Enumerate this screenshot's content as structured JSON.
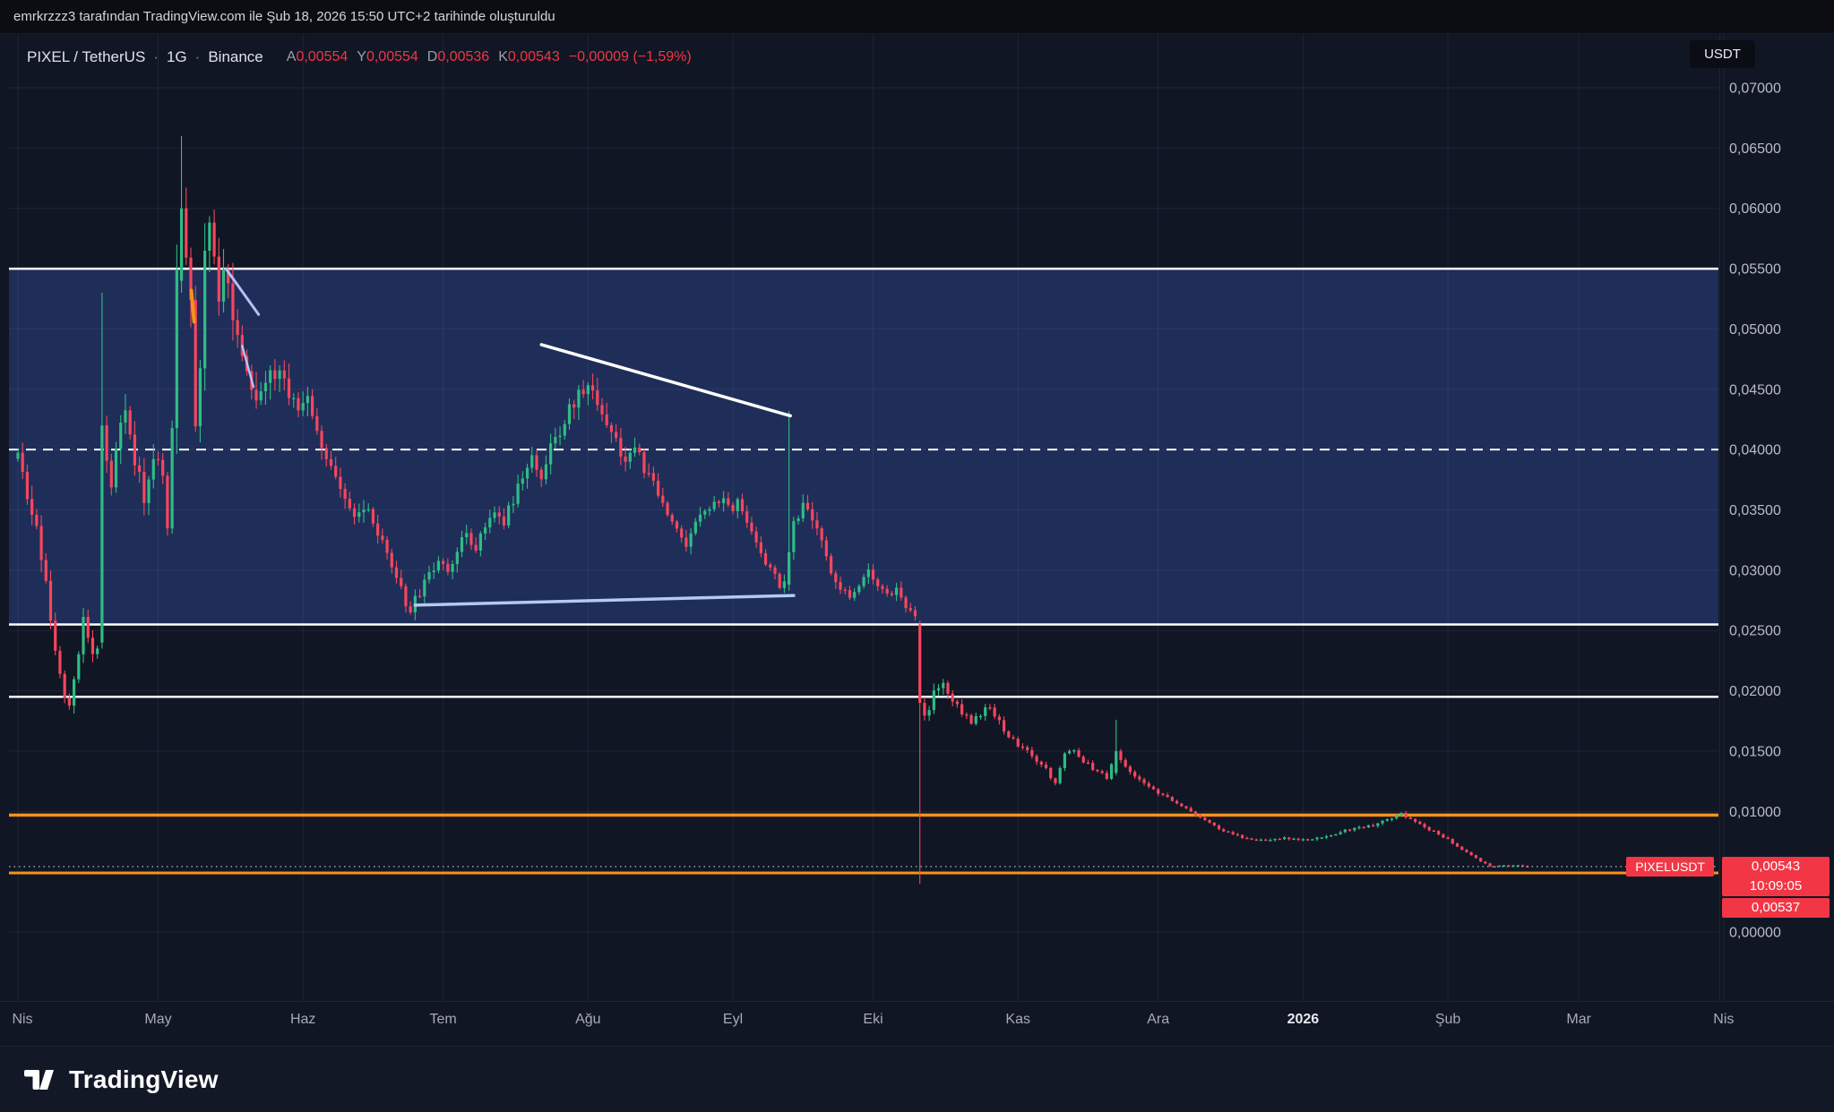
{
  "attribution_bar": {
    "text": "emrkrzzz3 tarafından TradingView.com ile Şub 18, 2026 15:50 UTC+2 tarihinde oluşturuldu"
  },
  "header": {
    "symbol": "PIXEL / TetherUS",
    "separator": "·",
    "interval": "1G",
    "exchange": "Binance",
    "ohlc": [
      {
        "label": "A",
        "value": "0,00554"
      },
      {
        "label": "Y",
        "value": "0,00554"
      },
      {
        "label": "D",
        "value": "0,00536"
      },
      {
        "label": "K",
        "value": "0,00543"
      }
    ],
    "change": "−0,00009 (−1,59%)"
  },
  "currency_toggle": {
    "label": "USDT"
  },
  "axis_badges": {
    "symbol_line_label": "PIXELUSDT",
    "last_price": "0,00543",
    "countdown": "10:09:05",
    "secondary_price": "0,00537"
  },
  "footer": {
    "brand": "TradingView"
  },
  "colors": {
    "up": "#2ebd85",
    "down": "#f6465d",
    "accent_red": "#f23645",
    "orange_line": "#f7931a",
    "band_fill": "#1f2e58",
    "white_line": "#ffffff",
    "powder_trendline": "#b6c9ee",
    "lavender_trendline": "#b9bdf7",
    "axis_text": "#b8bcc6",
    "grid": "rgba(151,166,205,0.10)"
  },
  "chart_data": {
    "type": "candlestick",
    "symbol": "PIXELUSDT",
    "exchange": "Binance",
    "interval": "1D",
    "start_date": "2025-04-01",
    "end_day": 323,
    "last_price": 0.00543,
    "price_range_visible": [
      0.0,
      0.07
    ],
    "y_ticks": [
      {
        "label": "0,07000",
        "value": 0.07
      },
      {
        "label": "0,06500",
        "value": 0.065
      },
      {
        "label": "0,06000",
        "value": 0.06
      },
      {
        "label": "0,05500",
        "value": 0.055
      },
      {
        "label": "0,05000",
        "value": 0.05
      },
      {
        "label": "0,04500",
        "value": 0.045
      },
      {
        "label": "0,04000",
        "value": 0.04
      },
      {
        "label": "0,03500",
        "value": 0.035
      },
      {
        "label": "0,03000",
        "value": 0.03
      },
      {
        "label": "0,02500",
        "value": 0.025
      },
      {
        "label": "0,02000",
        "value": 0.02
      },
      {
        "label": "0,01500",
        "value": 0.015
      },
      {
        "label": "0,01000",
        "value": 0.01
      },
      {
        "label": "0,00000",
        "value": 0.0
      }
    ],
    "x_ticks": [
      {
        "label": "Nis",
        "day": 0
      },
      {
        "label": "May",
        "day": 30
      },
      {
        "label": "Haz",
        "day": 61
      },
      {
        "label": "Tem",
        "day": 91
      },
      {
        "label": "Ağu",
        "day": 122
      },
      {
        "label": "Eyl",
        "day": 153
      },
      {
        "label": "Eki",
        "day": 183
      },
      {
        "label": "Kas",
        "day": 214
      },
      {
        "label": "Ara",
        "day": 244
      },
      {
        "label": "2026",
        "day": 275,
        "emphasis": true
      },
      {
        "label": "Şub",
        "day": 306
      },
      {
        "label": "Mar",
        "day": 334
      },
      {
        "label": "Nis",
        "day": 365
      }
    ],
    "close_keyframes": [
      [
        0,
        0.039
      ],
      [
        2,
        0.036
      ],
      [
        4,
        0.033
      ],
      [
        6,
        0.0295
      ],
      [
        7,
        0.0262
      ],
      [
        8,
        0.0235
      ],
      [
        9,
        0.0215
      ],
      [
        10,
        0.0198
      ],
      [
        11,
        0.0192
      ],
      [
        12,
        0.0213
      ],
      [
        13,
        0.0235
      ],
      [
        14,
        0.0258
      ],
      [
        15,
        0.0246
      ],
      [
        16,
        0.0228
      ],
      [
        17,
        0.0238
      ],
      [
        18,
        0.042
      ],
      [
        19,
        0.0385
      ],
      [
        20,
        0.0366
      ],
      [
        21,
        0.0405
      ],
      [
        22,
        0.043
      ],
      [
        23,
        0.0442
      ],
      [
        24,
        0.0415
      ],
      [
        25,
        0.0392
      ],
      [
        26,
        0.0375
      ],
      [
        27,
        0.036
      ],
      [
        28,
        0.0372
      ],
      [
        29,
        0.039
      ],
      [
        30,
        0.04
      ],
      [
        31,
        0.0378
      ],
      [
        32,
        0.034
      ],
      [
        33,
        0.042
      ],
      [
        34,
        0.054
      ],
      [
        35,
        0.06
      ],
      [
        36,
        0.057
      ],
      [
        37,
        0.0525
      ],
      [
        38,
        0.0425
      ],
      [
        39,
        0.047
      ],
      [
        40,
        0.0555
      ],
      [
        41,
        0.0585
      ],
      [
        42,
        0.056
      ],
      [
        43,
        0.053
      ],
      [
        44,
        0.0555
      ],
      [
        45,
        0.0545
      ],
      [
        46,
        0.052
      ],
      [
        47,
        0.05
      ],
      [
        48,
        0.0478
      ],
      [
        50,
        0.0452
      ],
      [
        52,
        0.044
      ],
      [
        54,
        0.0458
      ],
      [
        56,
        0.0465
      ],
      [
        58,
        0.0445
      ],
      [
        60,
        0.0432
      ],
      [
        62,
        0.0445
      ],
      [
        64,
        0.042
      ],
      [
        66,
        0.0395
      ],
      [
        68,
        0.0372
      ],
      [
        70,
        0.0355
      ],
      [
        72,
        0.0342
      ],
      [
        74,
        0.0352
      ],
      [
        76,
        0.0338
      ],
      [
        78,
        0.032
      ],
      [
        80,
        0.03
      ],
      [
        82,
        0.0285
      ],
      [
        83,
        0.0272
      ],
      [
        84,
        0.0268
      ],
      [
        86,
        0.0281
      ],
      [
        88,
        0.0295
      ],
      [
        90,
        0.031
      ],
      [
        92,
        0.0301
      ],
      [
        94,
        0.0316
      ],
      [
        96,
        0.033
      ],
      [
        98,
        0.0321
      ],
      [
        100,
        0.0335
      ],
      [
        102,
        0.035
      ],
      [
        104,
        0.0341
      ],
      [
        106,
        0.036
      ],
      [
        108,
        0.0375
      ],
      [
        110,
        0.039
      ],
      [
        112,
        0.0381
      ],
      [
        114,
        0.04
      ],
      [
        116,
        0.0415
      ],
      [
        118,
        0.0432
      ],
      [
        120,
        0.0446
      ],
      [
        122,
        0.0455
      ],
      [
        124,
        0.044
      ],
      [
        126,
        0.0425
      ],
      [
        128,
        0.0408
      ],
      [
        130,
        0.0391
      ],
      [
        132,
        0.04
      ],
      [
        134,
        0.0385
      ],
      [
        136,
        0.037
      ],
      [
        138,
        0.0355
      ],
      [
        140,
        0.0341
      ],
      [
        142,
        0.033
      ],
      [
        143,
        0.0316
      ],
      [
        144,
        0.033
      ],
      [
        146,
        0.0345
      ],
      [
        148,
        0.0355
      ],
      [
        150,
        0.036
      ],
      [
        152,
        0.035
      ],
      [
        154,
        0.0357
      ],
      [
        156,
        0.0342
      ],
      [
        158,
        0.0325
      ],
      [
        160,
        0.0306
      ],
      [
        162,
        0.0295
      ],
      [
        163,
        0.0289
      ],
      [
        164,
        0.0291
      ],
      [
        165,
        0.0315
      ],
      [
        166,
        0.0338
      ],
      [
        168,
        0.0352
      ],
      [
        170,
        0.034
      ],
      [
        172,
        0.0322
      ],
      [
        174,
        0.03
      ],
      [
        176,
        0.0285
      ],
      [
        178,
        0.0277
      ],
      [
        180,
        0.029
      ],
      [
        182,
        0.0297
      ],
      [
        184,
        0.0288
      ],
      [
        186,
        0.0278
      ],
      [
        188,
        0.0285
      ],
      [
        190,
        0.0272
      ],
      [
        192,
        0.0258
      ],
      [
        193,
        0.019
      ],
      [
        194,
        0.0178
      ],
      [
        195,
        0.0186
      ],
      [
        196,
        0.0198
      ],
      [
        198,
        0.0207
      ],
      [
        200,
        0.0193
      ],
      [
        202,
        0.0183
      ],
      [
        204,
        0.0175
      ],
      [
        206,
        0.018
      ],
      [
        208,
        0.0188
      ],
      [
        210,
        0.0174
      ],
      [
        212,
        0.0163
      ],
      [
        214,
        0.0155
      ],
      [
        216,
        0.0149
      ],
      [
        218,
        0.0141
      ],
      [
        220,
        0.0135
      ],
      [
        221,
        0.0127
      ],
      [
        222,
        0.0124
      ],
      [
        224,
        0.0147
      ],
      [
        226,
        0.015
      ],
      [
        228,
        0.0142
      ],
      [
        230,
        0.0136
      ],
      [
        232,
        0.0131
      ],
      [
        233,
        0.0127
      ],
      [
        235,
        0.015
      ],
      [
        236,
        0.0143
      ],
      [
        238,
        0.0133
      ],
      [
        240,
        0.0127
      ],
      [
        242,
        0.0121
      ],
      [
        244,
        0.0116
      ],
      [
        246,
        0.0111
      ],
      [
        248,
        0.0107
      ],
      [
        250,
        0.0102
      ],
      [
        252,
        0.0097
      ],
      [
        254,
        0.0092
      ],
      [
        256,
        0.0088
      ],
      [
        258,
        0.0084
      ],
      [
        260,
        0.0081
      ],
      [
        262,
        0.0078
      ],
      [
        264,
        0.0076
      ],
      [
        266,
        0.0077
      ],
      [
        268,
        0.0076
      ],
      [
        270,
        0.0077
      ],
      [
        272,
        0.0078
      ],
      [
        274,
        0.0076
      ],
      [
        276,
        0.0077
      ],
      [
        278,
        0.0078
      ],
      [
        280,
        0.0079
      ],
      [
        282,
        0.0081
      ],
      [
        284,
        0.0084
      ],
      [
        286,
        0.0087
      ],
      [
        288,
        0.0086
      ],
      [
        290,
        0.0089
      ],
      [
        292,
        0.0092
      ],
      [
        294,
        0.0095
      ],
      [
        296,
        0.0098
      ],
      [
        297,
        0.0096
      ],
      [
        298,
        0.0093
      ],
      [
        300,
        0.0089
      ],
      [
        302,
        0.0085
      ],
      [
        304,
        0.0081
      ],
      [
        306,
        0.0077
      ],
      [
        308,
        0.0071
      ],
      [
        310,
        0.0066
      ],
      [
        312,
        0.0061
      ],
      [
        314,
        0.0057
      ],
      [
        315,
        0.0055
      ],
      [
        316,
        0.00545
      ],
      [
        318,
        0.0055
      ],
      [
        320,
        0.00548
      ],
      [
        322,
        0.00551
      ],
      [
        323,
        0.00543
      ]
    ],
    "volatility_keyframes": [
      [
        0,
        1.4
      ],
      [
        10,
        1.5
      ],
      [
        18,
        1.6
      ],
      [
        30,
        1.6
      ],
      [
        35,
        2.0
      ],
      [
        45,
        1.7
      ],
      [
        60,
        1.3
      ],
      [
        80,
        1.1
      ],
      [
        95,
        1.0
      ],
      [
        120,
        1.1
      ],
      [
        140,
        0.9
      ],
      [
        160,
        0.9
      ],
      [
        170,
        1.0
      ],
      [
        185,
        0.8
      ],
      [
        192,
        1.0
      ],
      [
        195,
        1.3
      ],
      [
        205,
        1.0
      ],
      [
        214,
        0.9
      ],
      [
        230,
        0.8
      ],
      [
        244,
        0.8
      ],
      [
        256,
        0.7
      ],
      [
        264,
        0.8
      ],
      [
        275,
        0.8
      ],
      [
        290,
        0.9
      ],
      [
        300,
        0.8
      ],
      [
        308,
        0.7
      ],
      [
        316,
        0.6
      ],
      [
        323,
        0.6
      ]
    ],
    "special_candles": [
      {
        "day": 18,
        "o": 0.024,
        "h": 0.053,
        "l": 0.0235,
        "c": 0.042
      },
      {
        "day": 35,
        "o": 0.054,
        "h": 0.066,
        "l": 0.053,
        "c": 0.06
      },
      {
        "day": 165,
        "o": 0.0288,
        "h": 0.0432,
        "l": 0.0283,
        "c": 0.0315
      },
      {
        "day": 193,
        "o": 0.0255,
        "h": 0.0258,
        "l": 0.004,
        "c": 0.019
      },
      {
        "day": 235,
        "o": 0.0132,
        "h": 0.0176,
        "l": 0.013,
        "c": 0.015
      }
    ],
    "zones": [
      {
        "name": "blue-rectangle-zone",
        "price_from": 0.0255,
        "price_to": 0.055
      }
    ],
    "hlines": [
      {
        "price": 0.055,
        "style": "solid",
        "color": "white",
        "width": 2.5
      },
      {
        "price": 0.0255,
        "style": "solid",
        "color": "white",
        "width": 2.5
      },
      {
        "price": 0.0195,
        "style": "solid",
        "color": "white",
        "width": 2.5
      },
      {
        "price": 0.04,
        "style": "dashed",
        "color": "white",
        "width": 2
      },
      {
        "price": 0.0097,
        "style": "solid",
        "color": "orange",
        "width": 3.5
      },
      {
        "price": 0.0049,
        "style": "solid",
        "color": "orange",
        "width": 3
      },
      {
        "price": 0.00543,
        "style": "dotted",
        "color": "gray",
        "width": 1.5
      }
    ],
    "trendlines": [
      {
        "name": "descending-white-trendline",
        "from": [
          112,
          0.0487
        ],
        "to": [
          165.3,
          0.0428
        ],
        "color": "white",
        "width": 3.5
      },
      {
        "name": "ascending-powder-trendline",
        "from": [
          85,
          0.0271
        ],
        "to": [
          166,
          0.0279
        ],
        "color": "powder",
        "width": 3.5
      },
      {
        "name": "lavender-segment-a",
        "from": [
          44.5,
          0.055
        ],
        "to": [
          51.5,
          0.0512
        ],
        "color": "lavender",
        "width": 3
      },
      {
        "name": "lavender-segment-b",
        "from": [
          48,
          0.0486
        ],
        "to": [
          50.4,
          0.0452
        ],
        "color": "lavender",
        "width": 2.5
      },
      {
        "name": "orange-tick",
        "from": [
          37.1,
          0.0532
        ],
        "to": [
          37.7,
          0.0506
        ],
        "color": "orange",
        "width": 4
      }
    ]
  }
}
